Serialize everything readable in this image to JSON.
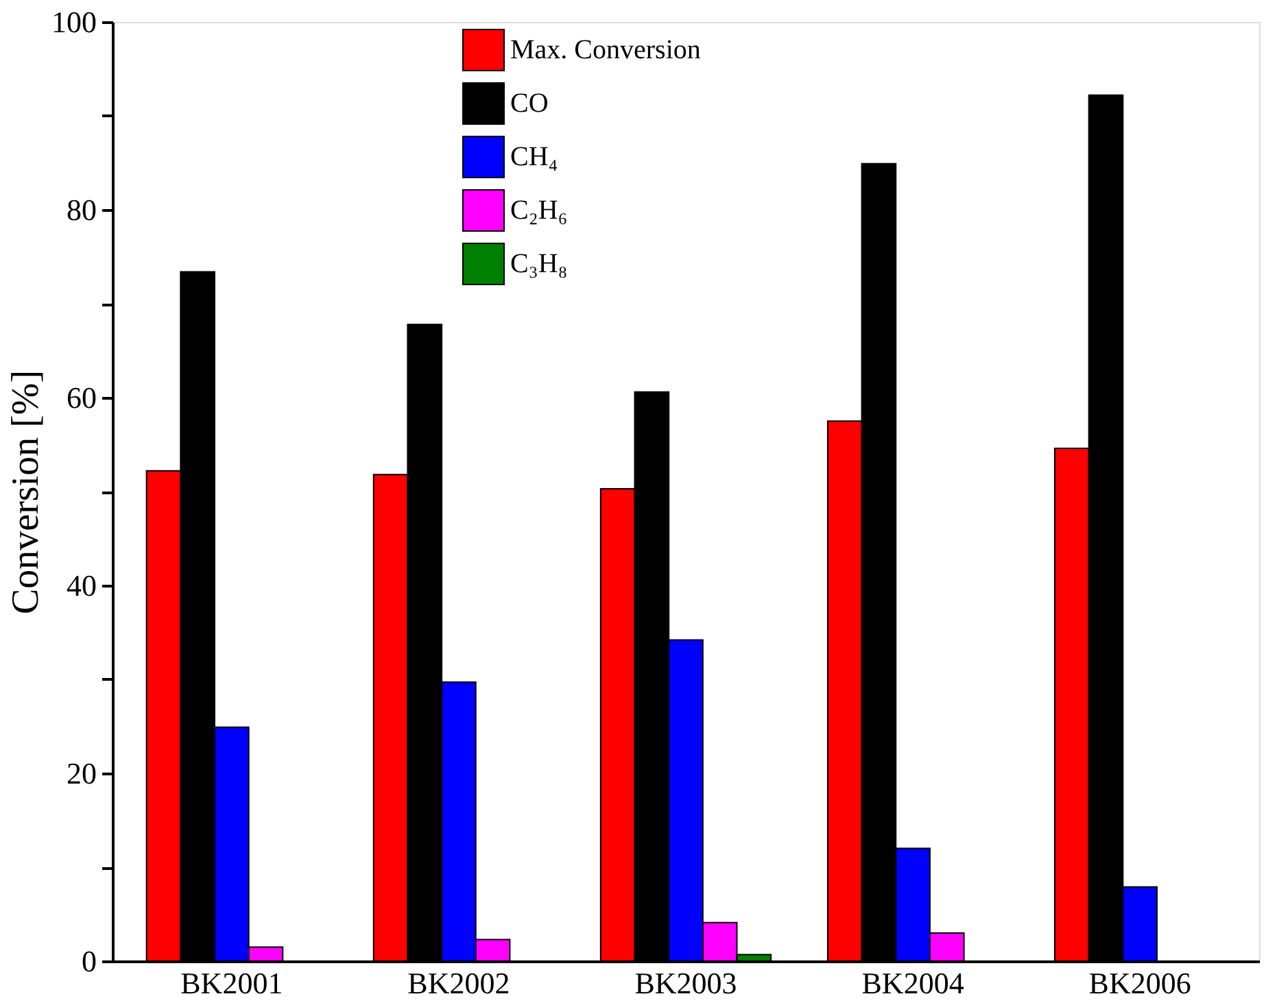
{
  "chart_data": {
    "type": "bar",
    "ylabel": "Conversion [%]",
    "categories": [
      "BK2001",
      "BK2002",
      "BK2003",
      "BK2004",
      "BK2006"
    ],
    "series": [
      {
        "name": "Max. Conversion",
        "color": "#ff0000",
        "values": [
          52.2,
          51.8,
          50.3,
          57.5,
          54.6
        ]
      },
      {
        "name": "CO",
        "color": "#000000",
        "values": [
          73.4,
          67.8,
          60.6,
          84.9,
          92.2
        ]
      },
      {
        "name": "CH₄",
        "color": "#0000ff",
        "values": [
          24.9,
          29.7,
          34.2,
          12.0,
          7.9
        ]
      },
      {
        "name": "C₂H₆",
        "color": "#ff00ff",
        "values": [
          1.5,
          2.3,
          4.1,
          3.0,
          null
        ]
      },
      {
        "name": "C₃H₈",
        "color": "#008000",
        "values": [
          null,
          null,
          0.7,
          null,
          null
        ]
      }
    ],
    "ylim": [
      0,
      100
    ],
    "yticks": [
      0,
      {
        "value": 10,
        "label": null
      },
      20,
      {
        "value": 30,
        "label": null
      },
      40,
      {
        "value": 50,
        "label": null
      },
      60,
      {
        "value": 70,
        "label": null
      },
      80,
      {
        "value": 90,
        "label": null
      },
      100
    ],
    "grid": false,
    "legend": "top"
  }
}
